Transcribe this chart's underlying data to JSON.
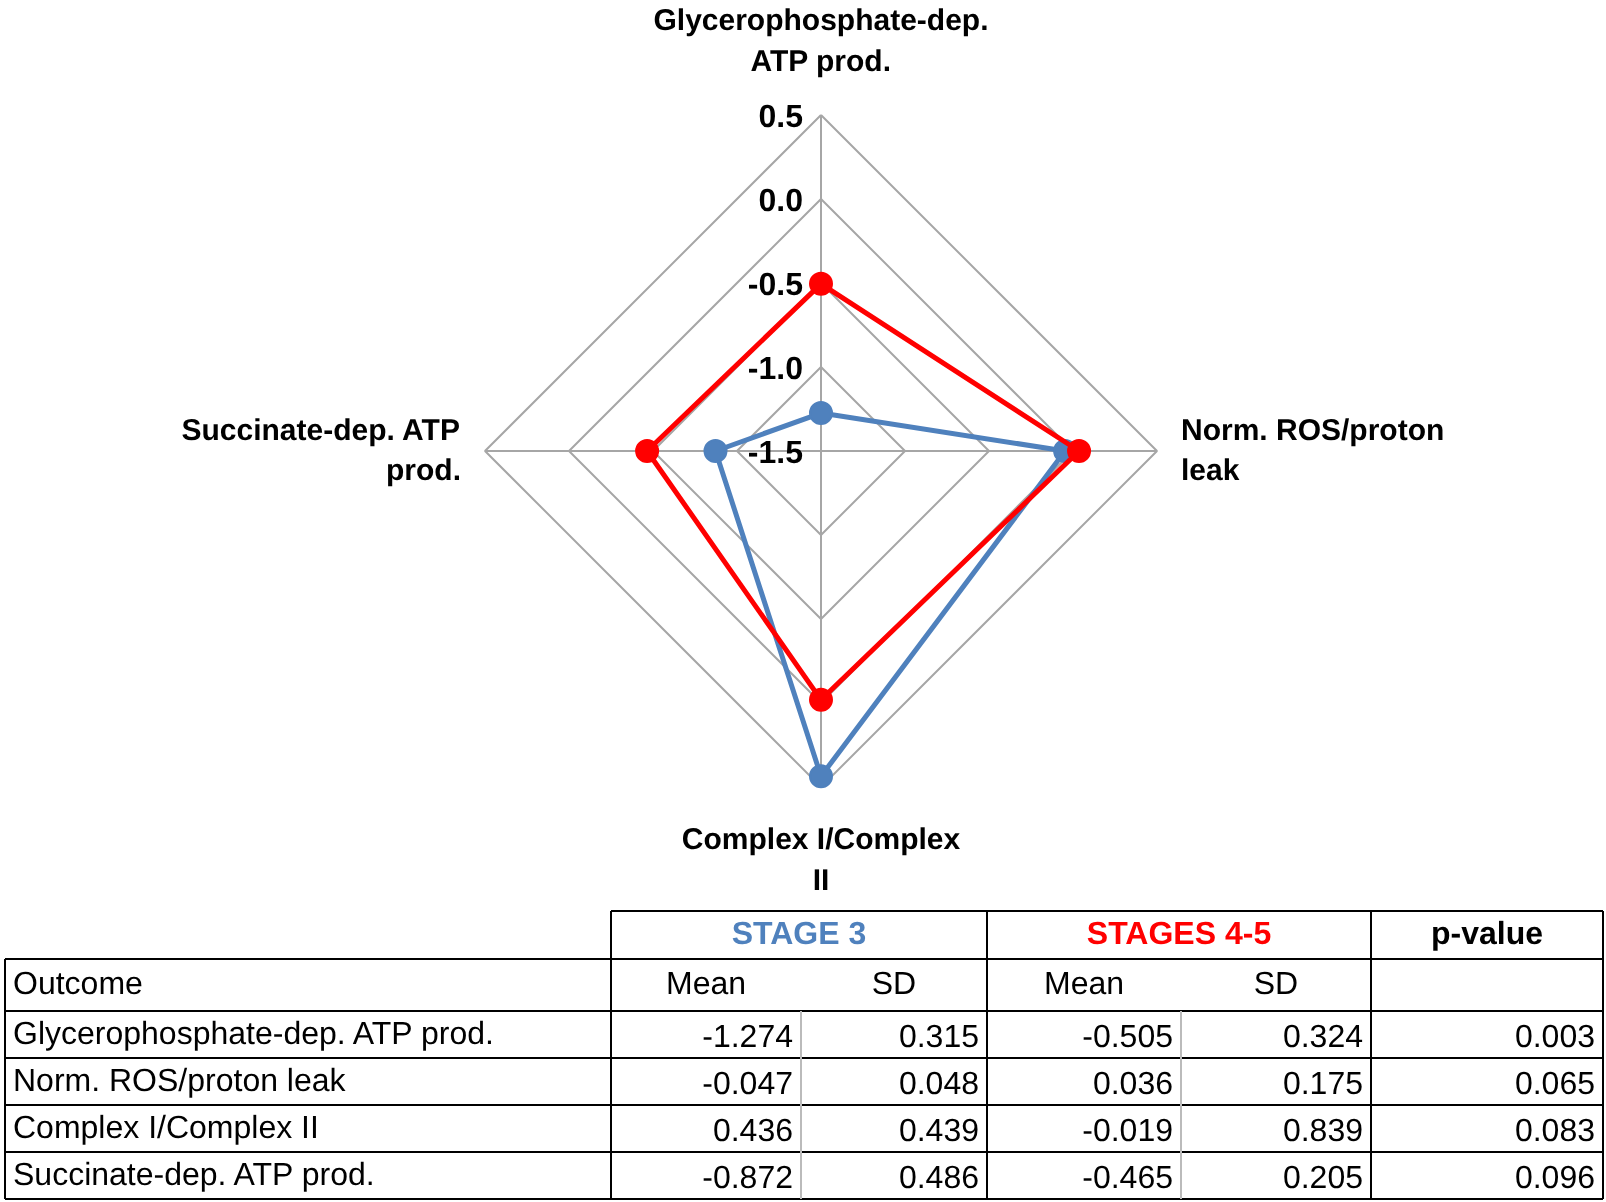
{
  "chart_data": {
    "type": "radar",
    "categories": [
      "Glycerophosphate-dep. ATP prod.",
      "Norm. ROS/proton leak",
      "Complex I/Complex II",
      "Succinate-dep. ATP prod."
    ],
    "series": [
      {
        "name": "STAGE 3",
        "color": "#4f81bd",
        "values": [
          -1.274,
          -0.047,
          0.436,
          -0.872
        ]
      },
      {
        "name": "STAGES 4-5",
        "color": "#ff0000",
        "values": [
          -0.505,
          0.036,
          -0.019,
          -0.465
        ]
      }
    ],
    "ylim": [
      -1.5,
      0.5
    ],
    "yticks": [
      {
        "value": -1.5,
        "label": "-1.5"
      },
      {
        "value": -1.0,
        "label": "-1.0"
      },
      {
        "value": -0.5,
        "label": "-0.5"
      },
      {
        "value": 0,
        "label": "0.0"
      },
      {
        "value": 0.5,
        "label": "0.5"
      }
    ],
    "grid": true,
    "marker": "circle",
    "annotations": [
      "Outcome",
      "Mean",
      "SD",
      "p-value",
      "-1.274",
      "0.315",
      "-0.505",
      "0.324",
      "0.003",
      "-0.047",
      "0.048",
      "0.036",
      "0.175",
      "0.065",
      "0.436",
      "0.439",
      "-0.019",
      "0.839",
      "0.083",
      "-0.872",
      "0.486",
      "-0.465",
      "0.205",
      "0.096"
    ]
  }
}
